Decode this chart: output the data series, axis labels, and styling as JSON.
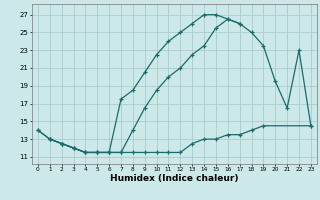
{
  "background_color": "#cce8e8",
  "grid_color": "#a8cccc",
  "line_color": "#1a6b6b",
  "line_width": 0.9,
  "marker": "+",
  "marker_size": 3.5,
  "marker_edge_width": 0.9,
  "xlabel": "Humidex (Indice chaleur)",
  "xlabel_fontsize": 6.5,
  "ytick_vals": [
    11,
    13,
    15,
    17,
    19,
    21,
    23,
    25,
    27
  ],
  "xtick_vals": [
    0,
    1,
    2,
    3,
    4,
    5,
    6,
    7,
    8,
    9,
    10,
    11,
    12,
    13,
    14,
    15,
    16,
    17,
    18,
    19,
    20,
    21,
    22,
    23
  ],
  "xlim": [
    -0.5,
    23.5
  ],
  "ylim": [
    10.2,
    28.2
  ],
  "curves": [
    {
      "x": [
        0,
        1,
        2,
        3,
        4,
        5,
        6,
        7,
        8,
        9,
        10,
        11,
        12,
        13,
        14,
        15,
        16,
        17
      ],
      "y": [
        14.0,
        13.0,
        12.5,
        12.0,
        11.5,
        11.5,
        11.5,
        17.5,
        18.5,
        20.5,
        22.5,
        24.0,
        25.0,
        26.0,
        27.0,
        27.0,
        26.5,
        26.0
      ]
    },
    {
      "x": [
        0,
        1,
        2,
        3,
        4,
        5,
        6,
        7,
        8,
        9,
        10,
        11,
        12,
        13,
        14,
        15,
        16,
        17,
        18,
        19,
        20,
        21,
        22,
        23
      ],
      "y": [
        14.0,
        13.0,
        12.5,
        12.0,
        11.5,
        11.5,
        11.5,
        11.5,
        14.0,
        16.5,
        18.5,
        20.0,
        21.0,
        22.5,
        23.5,
        25.5,
        26.5,
        26.0,
        25.0,
        23.5,
        19.5,
        16.5,
        23.0,
        14.5
      ]
    },
    {
      "x": [
        1,
        2,
        3,
        4,
        5,
        6,
        7,
        8,
        9,
        10,
        11,
        12,
        13,
        14,
        15,
        16,
        17,
        18,
        19,
        23
      ],
      "y": [
        13.0,
        12.5,
        12.0,
        11.5,
        11.5,
        11.5,
        11.5,
        11.5,
        11.5,
        11.5,
        11.5,
        11.5,
        12.5,
        13.0,
        13.0,
        13.5,
        13.5,
        14.0,
        14.5,
        14.5
      ]
    }
  ]
}
